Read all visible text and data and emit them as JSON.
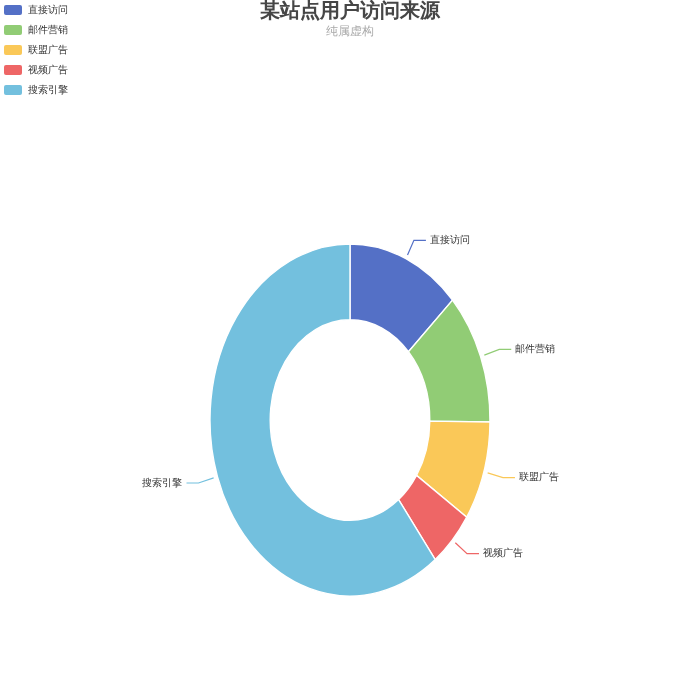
{
  "chart_data": {
    "type": "donut",
    "title": "某站点用户访问来源",
    "subtitle": "纯属虚构",
    "legend": "top left",
    "categories": [
      "直接访问",
      "邮件营销",
      "联盟广告",
      "视频广告",
      "搜索引擎"
    ],
    "values": [
      13.08,
      12.1,
      9.13,
      5.27,
      60.42
    ],
    "colors": [
      "#5470c6",
      "#91cc75",
      "#fac858",
      "#ee6666",
      "#73c0de"
    ]
  }
}
